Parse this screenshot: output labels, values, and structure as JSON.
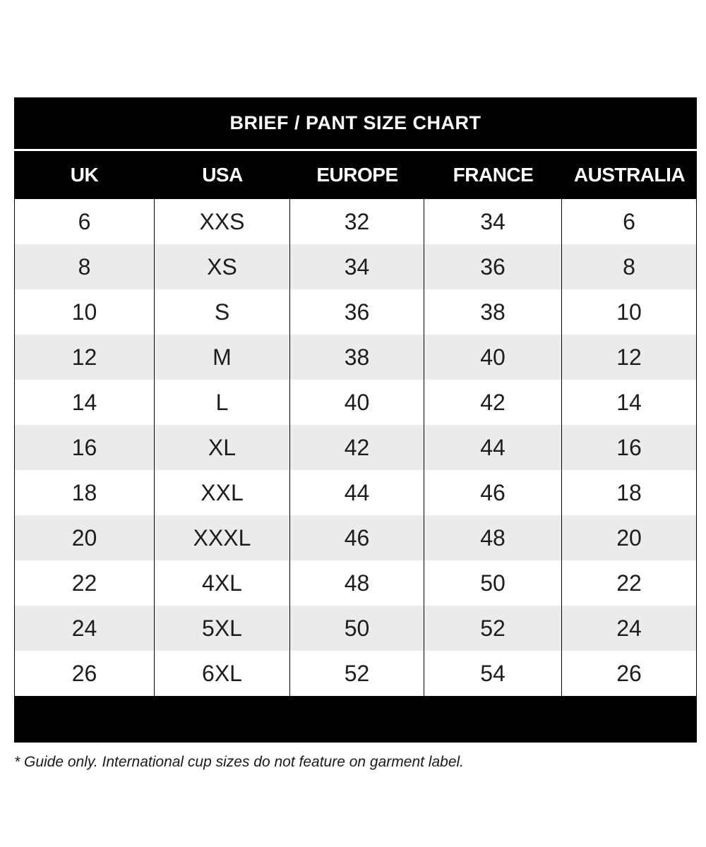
{
  "chart_data": {
    "type": "table",
    "title": "BRIEF / PANT SIZE CHART",
    "columns": [
      "UK",
      "USA",
      "EUROPE",
      "FRANCE",
      "AUSTRALIA"
    ],
    "rows": [
      [
        "6",
        "XXS",
        "32",
        "34",
        "6"
      ],
      [
        "8",
        "XS",
        "34",
        "36",
        "8"
      ],
      [
        "10",
        "S",
        "36",
        "38",
        "10"
      ],
      [
        "12",
        "M",
        "38",
        "40",
        "12"
      ],
      [
        "14",
        "L",
        "40",
        "42",
        "14"
      ],
      [
        "16",
        "XL",
        "42",
        "44",
        "16"
      ],
      [
        "18",
        "XXL",
        "44",
        "46",
        "18"
      ],
      [
        "20",
        "XXXL",
        "46",
        "48",
        "20"
      ],
      [
        "22",
        "4XL",
        "48",
        "50",
        "22"
      ],
      [
        "24",
        "5XL",
        "50",
        "52",
        "24"
      ],
      [
        "26",
        "6XL",
        "52",
        "54",
        "26"
      ]
    ],
    "layout": {
      "alternating_rows": true,
      "row_start_color": "white"
    }
  },
  "footnote": "* Guide only. International cup sizes do not feature on garment label.",
  "colors": {
    "bar_bg": "#000000",
    "bar_text": "#ffffff",
    "row_bg": "#ffffff",
    "row_alt_bg": "#ebebeb",
    "cell_text": "#1d1d1d",
    "border": "#000000"
  }
}
